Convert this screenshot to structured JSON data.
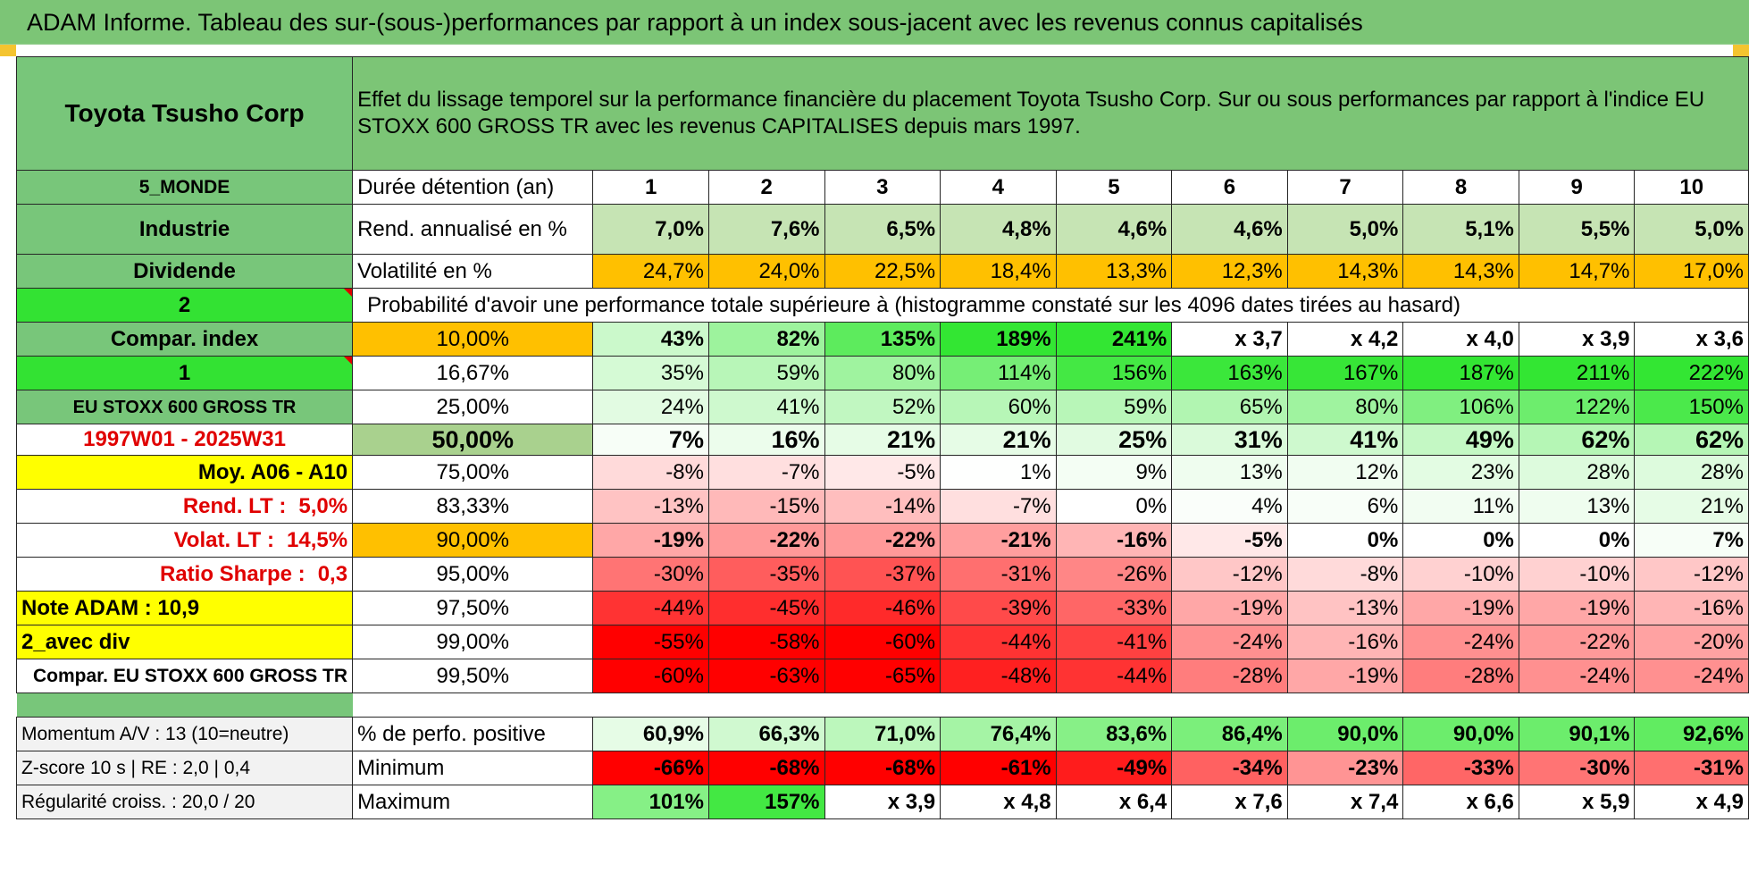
{
  "title": "ADAM Informe. Tableau des sur-(sous-)performances par rapport à un index sous-jacent avec les revenus connus capitalisés",
  "colors": {
    "header_green": "#7cc576",
    "label_green": "#78c67a",
    "bright_green": "#33e233",
    "orange": "#ffc000",
    "yellow": "#ffff00",
    "red_text": "#e00000"
  },
  "left": {
    "company": "Toyota Tsusho Corp",
    "region": "5_MONDE",
    "sector": "Industrie",
    "dividend": "Dividende",
    "dividend_flag": "2",
    "compar_index": "Compar. index",
    "index_flag": "1",
    "index_name": "EU STOXX 600 GROSS TR",
    "period": "1997W01 - 2025W31",
    "avg": "Moy. A06 - A10",
    "rend_lt_label": "Rend. LT :",
    "rend_lt_value": "5,0%",
    "volat_lt_label": "Volat. LT :",
    "volat_lt_value": "14,5%",
    "sharpe_label": "Ratio Sharpe :",
    "sharpe_value": "0,3",
    "note_adam": "Note ADAM : 10,9",
    "div_mode": "2_avec div",
    "compar_full": "Compar. EU STOXX 600 GROSS TR",
    "momentum": "Momentum A/V : 13 (10=neutre)",
    "zscore": "Z-score 10 s | RE : 2,0 | 0,4",
    "regularity": "Régularité croiss. : 20,0 / 20"
  },
  "header_text": "Effet du lissage temporel sur la performance financière du placement Toyota Tsusho Corp. Sur ou sous performances par rapport à l'indice EU STOXX 600 GROSS TR avec les revenus CAPITALISES depuis mars 1997.",
  "labels": {
    "duration": "Durée détention (an)",
    "rend": "Rend. annualisé en %",
    "vol": "Volatilité en %",
    "prob": "Probabilité d'avoir une performance totale supérieure à (histogramme constaté sur les 4096 dates tirées au hasard)",
    "pct_positive": "% de perfo. positive",
    "minimum": "Minimum",
    "maximum": "Maximum"
  },
  "years": [
    "1",
    "2",
    "3",
    "4",
    "5",
    "6",
    "7",
    "8",
    "9",
    "10"
  ],
  "rend": [
    "7,0%",
    "7,6%",
    "6,5%",
    "4,8%",
    "4,6%",
    "4,6%",
    "5,0%",
    "5,1%",
    "5,5%",
    "5,0%"
  ],
  "vol": [
    "24,7%",
    "24,0%",
    "22,5%",
    "18,4%",
    "13,3%",
    "12,3%",
    "14,3%",
    "14,3%",
    "14,7%",
    "17,0%"
  ],
  "quantiles": [
    {
      "p": "10,00%",
      "v": [
        "43%",
        "82%",
        "135%",
        "189%",
        "241%",
        "x 3,7",
        "x 4,2",
        "x 4,0",
        "x 3,9",
        "x 3,6"
      ]
    },
    {
      "p": "16,67%",
      "v": [
        "35%",
        "59%",
        "80%",
        "114%",
        "156%",
        "163%",
        "167%",
        "187%",
        "211%",
        "222%"
      ]
    },
    {
      "p": "25,00%",
      "v": [
        "24%",
        "41%",
        "52%",
        "60%",
        "59%",
        "65%",
        "80%",
        "106%",
        "122%",
        "150%"
      ]
    },
    {
      "p": "50,00%",
      "v": [
        "7%",
        "16%",
        "21%",
        "21%",
        "25%",
        "31%",
        "41%",
        "49%",
        "62%",
        "62%"
      ]
    },
    {
      "p": "75,00%",
      "v": [
        "-8%",
        "-7%",
        "-5%",
        "1%",
        "9%",
        "13%",
        "12%",
        "23%",
        "28%",
        "28%"
      ]
    },
    {
      "p": "83,33%",
      "v": [
        "-13%",
        "-15%",
        "-14%",
        "-7%",
        "0%",
        "4%",
        "6%",
        "11%",
        "13%",
        "21%"
      ]
    },
    {
      "p": "90,00%",
      "v": [
        "-19%",
        "-22%",
        "-22%",
        "-21%",
        "-16%",
        "-5%",
        "0%",
        "0%",
        "0%",
        "7%"
      ]
    },
    {
      "p": "95,00%",
      "v": [
        "-30%",
        "-35%",
        "-37%",
        "-31%",
        "-26%",
        "-12%",
        "-8%",
        "-10%",
        "-10%",
        "-12%"
      ]
    },
    {
      "p": "97,50%",
      "v": [
        "-44%",
        "-45%",
        "-46%",
        "-39%",
        "-33%",
        "-19%",
        "-13%",
        "-19%",
        "-19%",
        "-16%"
      ]
    },
    {
      "p": "99,00%",
      "v": [
        "-55%",
        "-58%",
        "-60%",
        "-44%",
        "-41%",
        "-24%",
        "-16%",
        "-24%",
        "-22%",
        "-20%"
      ]
    },
    {
      "p": "99,50%",
      "v": [
        "-60%",
        "-63%",
        "-65%",
        "-48%",
        "-44%",
        "-28%",
        "-19%",
        "-28%",
        "-24%",
        "-24%"
      ]
    }
  ],
  "pct_positive": [
    "60,9%",
    "66,3%",
    "71,0%",
    "76,4%",
    "83,6%",
    "86,4%",
    "90,0%",
    "90,0%",
    "90,1%",
    "92,6%"
  ],
  "minimum": [
    "-66%",
    "-68%",
    "-68%",
    "-61%",
    "-49%",
    "-34%",
    "-23%",
    "-33%",
    "-30%",
    "-31%"
  ],
  "maximum": [
    "101%",
    "157%",
    "x 3,9",
    "x 4,8",
    "x 6,4",
    "x 7,6",
    "x 7,4",
    "x 6,6",
    "x 5,9",
    "x 4,9"
  ]
}
